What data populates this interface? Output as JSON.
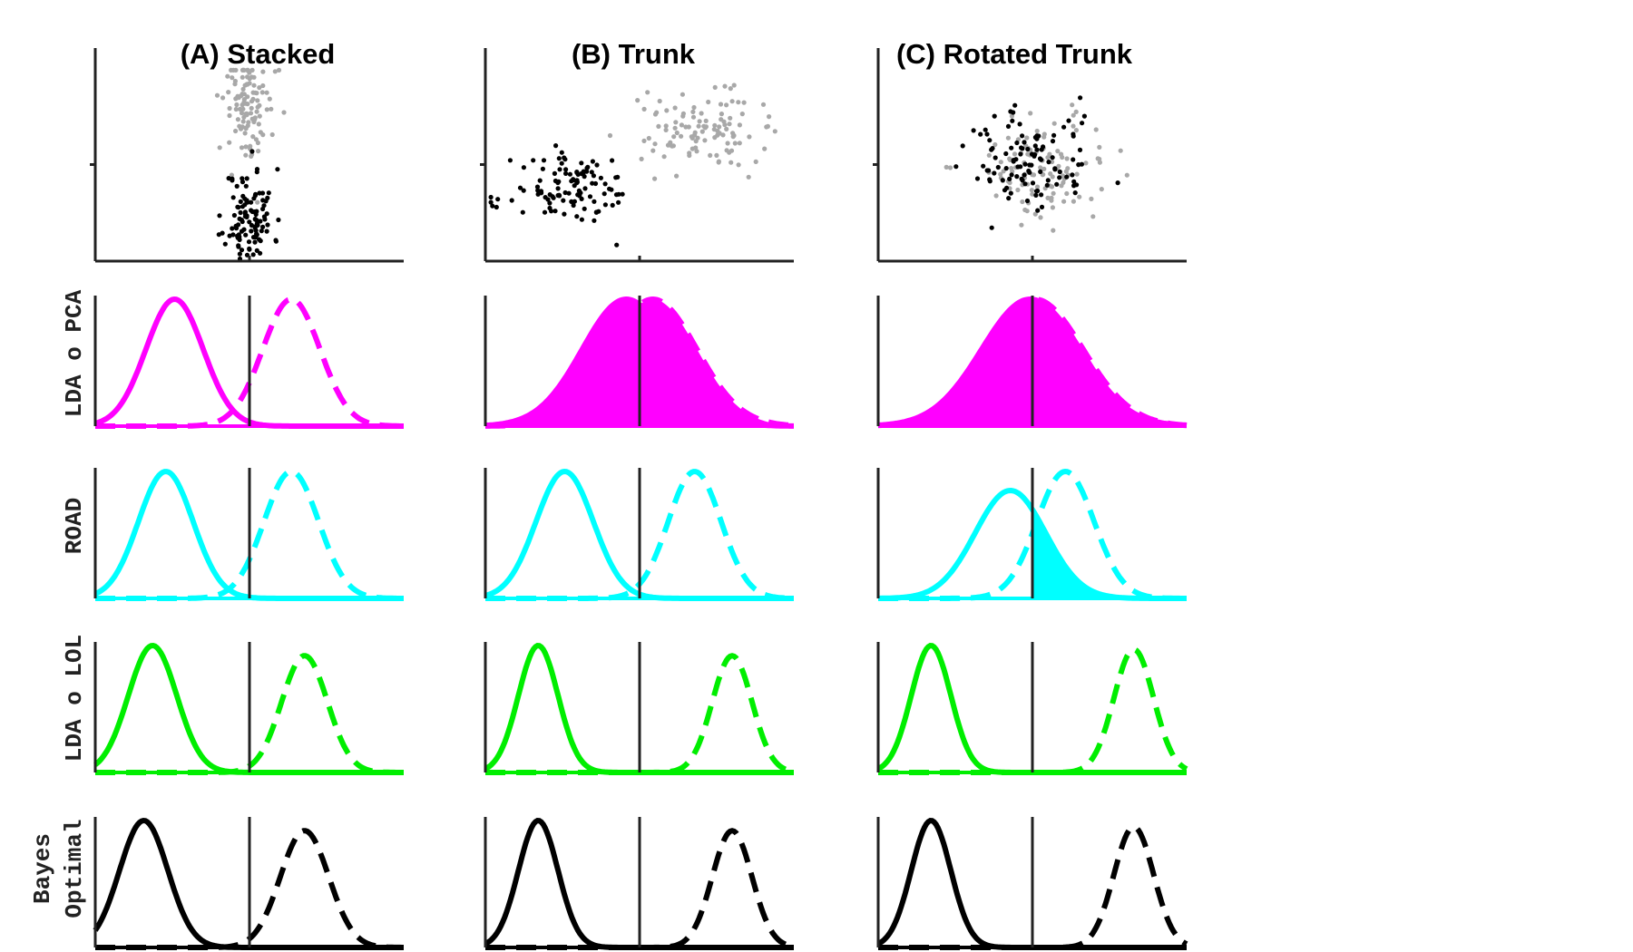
{
  "colors": {
    "class1_scatter": "#000000",
    "class2_scatter": "#a8a8a8",
    "pca": "#ff00ff",
    "road": "#00ffff",
    "lol": "#00ee00",
    "bayes": "#000000",
    "axis": "#222222"
  },
  "row_colors": [
    "pca",
    "road",
    "lol",
    "bayes"
  ],
  "chart_data": {
    "type": "figure-grid",
    "columns": [
      {
        "title": "(A) Stacked",
        "scatter": {
          "class1": {
            "mean": [
              0,
              -1.2
            ],
            "sd": [
              0.22,
              0.55
            ],
            "n": 110,
            "seed": 11
          },
          "class2": {
            "mean": [
              0,
              1.3
            ],
            "sd": [
              0.22,
              0.7
            ],
            "n": 110,
            "seed": 12
          }
        },
        "densities": [
          {
            "solid": {
              "mean": -1.7,
              "sd": 0.65,
              "peak": 1.0
            },
            "dashed": {
              "mean": 0.95,
              "sd": 0.65,
              "peak": 1.0
            },
            "fill_side": "right"
          },
          {
            "solid": {
              "mean": -1.9,
              "sd": 0.62,
              "peak": 1.0
            },
            "dashed": {
              "mean": 0.95,
              "sd": 0.62,
              "peak": 1.0
            },
            "fill_side": "right"
          },
          {
            "solid": {
              "mean": -2.2,
              "sd": 0.55,
              "peak": 1.0
            },
            "dashed": {
              "mean": 1.25,
              "sd": 0.52,
              "peak": 0.92
            },
            "fill_side": "right"
          },
          {
            "solid": {
              "mean": -2.4,
              "sd": 0.55,
              "peak": 1.0
            },
            "dashed": {
              "mean": 1.25,
              "sd": 0.55,
              "peak": 0.92
            },
            "fill_side": "right"
          }
        ]
      },
      {
        "title": "(B) Trunk",
        "scatter": {
          "class1": {
            "mean": [
              -1.2,
              -0.6
            ],
            "sd": [
              0.55,
              0.4
            ],
            "n": 110,
            "seed": 21
          },
          "class2": {
            "mean": [
              1.1,
              0.8
            ],
            "sd": [
              0.55,
              0.4
            ],
            "n": 110,
            "seed": 22
          }
        },
        "densities": [
          {
            "solid": {
              "mean": -0.3,
              "sd": 1.0,
              "peak": 1.0
            },
            "dashed": {
              "mean": 0.3,
              "sd": 1.0,
              "peak": 1.0
            },
            "fill_side": "both"
          },
          {
            "solid": {
              "mean": -1.7,
              "sd": 0.65,
              "peak": 1.0
            },
            "dashed": {
              "mean": 1.25,
              "sd": 0.6,
              "peak": 1.0
            },
            "fill_side": "right"
          },
          {
            "solid": {
              "mean": -2.3,
              "sd": 0.45,
              "peak": 1.0
            },
            "dashed": {
              "mean": 2.1,
              "sd": 0.45,
              "peak": 0.92
            },
            "fill_side": "right"
          },
          {
            "solid": {
              "mean": -2.3,
              "sd": 0.45,
              "peak": 1.0
            },
            "dashed": {
              "mean": 2.1,
              "sd": 0.45,
              "peak": 0.92
            },
            "fill_side": "right"
          }
        ]
      },
      {
        "title": "(C) Rotated Trunk",
        "scatter": {
          "class1": {
            "mean": [
              -0.1,
              0.05
            ],
            "sd": [
              0.6,
              0.6
            ],
            "n": 110,
            "seed": 31
          },
          "class2": {
            "mean": [
              0.1,
              -0.05
            ],
            "sd": [
              0.6,
              0.6
            ],
            "n": 110,
            "seed": 32
          }
        },
        "densities": [
          {
            "solid": {
              "mean": -0.05,
              "sd": 1.1,
              "peak": 1.0
            },
            "dashed": {
              "mean": 0.05,
              "sd": 1.1,
              "peak": 1.0
            },
            "fill_side": "both"
          },
          {
            "solid": {
              "mean": -0.5,
              "sd": 0.8,
              "peak": 0.85
            },
            "dashed": {
              "mean": 0.75,
              "sd": 0.65,
              "peak": 1.0
            },
            "fill_side": "right"
          },
          {
            "solid": {
              "mean": -2.3,
              "sd": 0.45,
              "peak": 1.0
            },
            "dashed": {
              "mean": 2.3,
              "sd": 0.45,
              "peak": 0.97
            },
            "fill_side": "right"
          },
          {
            "solid": {
              "mean": -2.3,
              "sd": 0.45,
              "peak": 1.0
            },
            "dashed": {
              "mean": 2.3,
              "sd": 0.45,
              "peak": 0.95
            },
            "fill_side": "right"
          }
        ]
      }
    ],
    "rows": [
      {
        "label_lines": [
          "LDA o PCA"
        ]
      },
      {
        "label_lines": [
          "ROAD"
        ]
      },
      {
        "label_lines": [
          "LDA o LOL"
        ]
      },
      {
        "label_lines": [
          "Bayes",
          "Optimal"
        ]
      }
    ],
    "density_xlim": [
      -3.5,
      3.5
    ],
    "scatter_xlim": [
      -2.8,
      2.8
    ],
    "scatter_ylim": [
      -2.2,
      2.2
    ],
    "threshold": 0
  }
}
